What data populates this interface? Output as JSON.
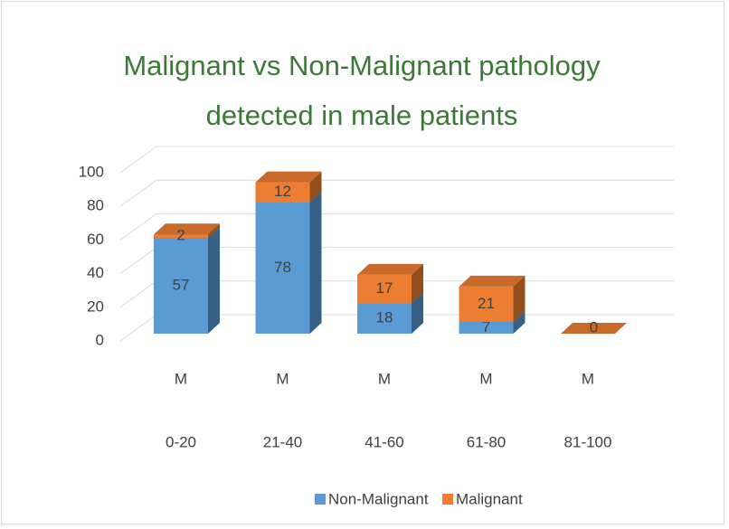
{
  "chart_data": {
    "type": "bar",
    "stacked": true,
    "three_d": true,
    "title": [
      "Malignant vs Non-Malignant pathology",
      "detected in male patients"
    ],
    "subcategories": [
      "M",
      "M",
      "M",
      "M",
      "M"
    ],
    "categories": [
      "0-20",
      "21-40",
      "41-60",
      "61-80",
      "81-100"
    ],
    "series": [
      {
        "name": "Non-Malignant",
        "color": "#5b9bd5",
        "values": [
          57,
          78,
          18,
          7,
          0
        ]
      },
      {
        "name": "Malignant",
        "color": "#ed7d31",
        "values": [
          2,
          12,
          17,
          21,
          0
        ]
      }
    ],
    "ylim": [
      0,
      100
    ],
    "yticks": [
      0,
      20,
      40,
      60,
      80,
      100
    ],
    "grid": true,
    "legend": "bottom"
  }
}
